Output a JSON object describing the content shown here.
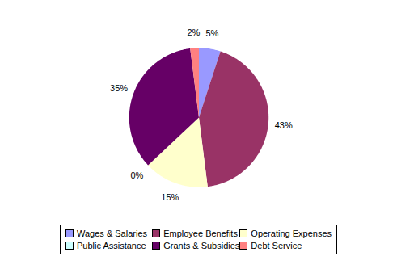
{
  "chart_data": {
    "type": "pie",
    "categories": [
      "Wages & Salaries",
      "Employee Benefits",
      "Operating Expenses",
      "Public Assistance",
      "Grants & Subsidies",
      "Debt Service"
    ],
    "values": [
      5,
      43,
      15,
      0,
      35,
      2
    ],
    "value_labels": [
      "5%",
      "43%",
      "15%",
      "0%",
      "35%",
      "2%"
    ],
    "colors": [
      "#9999ff",
      "#993366",
      "#ffffcc",
      "#ccffff",
      "#660066",
      "#ff8080"
    ],
    "data_labels": true,
    "legend": "bottom"
  }
}
